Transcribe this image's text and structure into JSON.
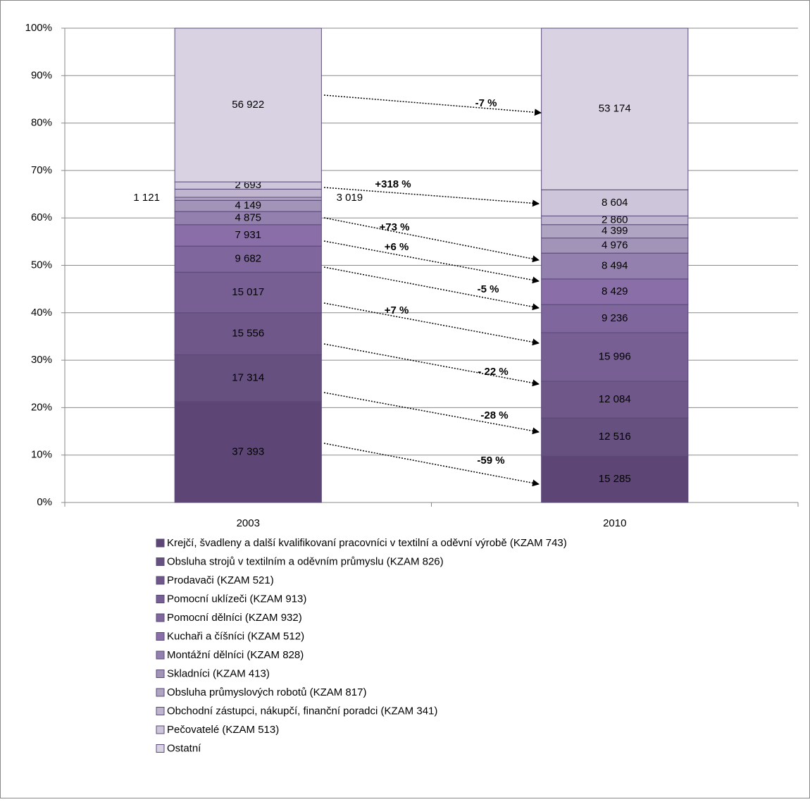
{
  "chart_data": {
    "type": "bar",
    "stacking": "percent",
    "categories": [
      "2003",
      "2010"
    ],
    "ylim": [
      0,
      100
    ],
    "yticks": [
      {
        "value": 0,
        "label": "0%"
      },
      {
        "value": 10,
        "label": "10%"
      },
      {
        "value": 20,
        "label": "20%"
      },
      {
        "value": 30,
        "label": "30%"
      },
      {
        "value": 40,
        "label": "40%"
      },
      {
        "value": 50,
        "label": "50%"
      },
      {
        "value": 60,
        "label": "60%"
      },
      {
        "value": 70,
        "label": "70%"
      },
      {
        "value": 80,
        "label": "80%"
      },
      {
        "value": 90,
        "label": "90%"
      },
      {
        "value": 100,
        "label": "100%"
      }
    ],
    "grid": true,
    "legend": "bottom",
    "series": [
      {
        "name": "Krejčí, švadleny a další kvalifikovaní pracovníci v textilní a oděvní výrobě (KZAM 743)",
        "color": "#5d4676",
        "values": [
          37393,
          15285
        ],
        "value_labels": [
          "37 393",
          "15 285"
        ]
      },
      {
        "name": "Obsluha strojů v textilním a oděvním průmyslu (KZAM 826)",
        "color": "#66507f",
        "values": [
          17314,
          12516
        ],
        "value_labels": [
          "17 314",
          "12 516"
        ]
      },
      {
        "name": "Prodavači (KZAM 521)",
        "color": "#6f5889",
        "values": [
          15556,
          12084
        ],
        "value_labels": [
          "15 556",
          "12 084"
        ]
      },
      {
        "name": "Pomocní uklízeči (KZAM 913)",
        "color": "#775f93",
        "values": [
          15017,
          15996
        ],
        "value_labels": [
          "15 017",
          "15 996"
        ]
      },
      {
        "name": "Pomocní dělníci (KZAM 932)",
        "color": "#7f669d",
        "values": [
          9682,
          9236
        ],
        "value_labels": [
          "9 682",
          "9 236"
        ]
      },
      {
        "name": "Kuchaři a číšníci (KZAM 512)",
        "color": "#8a6ea8",
        "values": [
          7931,
          8429
        ],
        "value_labels": [
          "7 931",
          "8 429"
        ]
      },
      {
        "name": "Montážní dělníci (KZAM 828)",
        "color": "#9480ae",
        "values": [
          4875,
          8494
        ],
        "value_labels": [
          "4 875",
          "8 494"
        ]
      },
      {
        "name": "Skladníci (KZAM 413)",
        "color": "#a293b8",
        "values": [
          4149,
          4976
        ],
        "value_labels": [
          "4 149",
          "4 976"
        ]
      },
      {
        "name": "Obsluha průmyslových robotů (KZAM 817)",
        "color": "#b0a4c3",
        "values": [
          1121,
          4399
        ],
        "value_labels": [
          "1 121",
          "4 399"
        ]
      },
      {
        "name": "Obchodní zástupci, nákupčí, finanční poradci (KZAM 341)",
        "color": "#bfb5ce",
        "values": [
          3019,
          2860
        ],
        "value_labels": [
          "3 019",
          "2 860"
        ]
      },
      {
        "name": "Pečovatelé (KZAM 513)",
        "color": "#cdc5d9",
        "values": [
          2693,
          8604
        ],
        "value_labels": [
          "2 693",
          "8 604"
        ]
      },
      {
        "name": "Ostatní",
        "color": "#d9d2e3",
        "values": [
          56922,
          53174
        ],
        "value_labels": [
          "56 922",
          "53 174"
        ]
      }
    ],
    "annotations": [
      "-7 %",
      "+318 %",
      "+73 %",
      "+6 %",
      "-5 %",
      "+7 %",
      "- 22 %",
      "-28 %",
      "-59 %"
    ]
  }
}
